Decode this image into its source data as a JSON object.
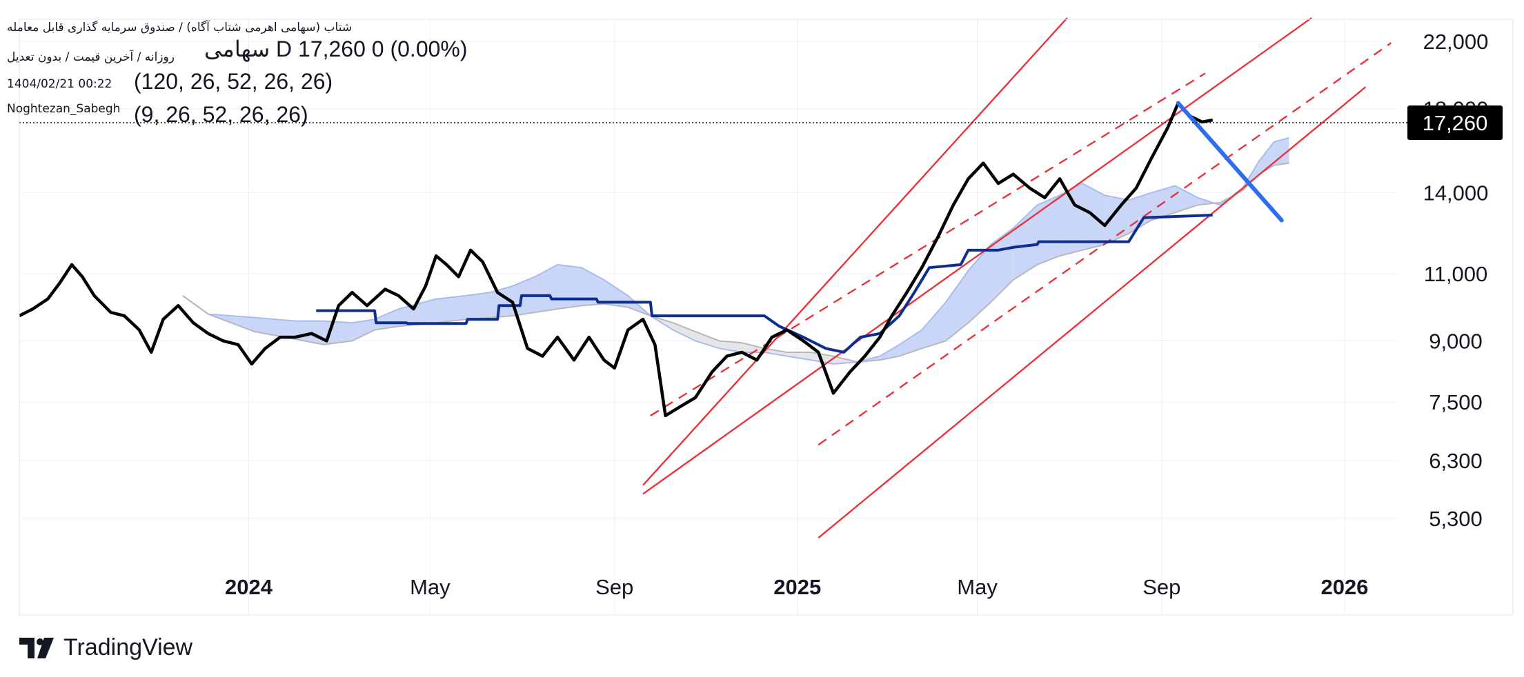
{
  "header": {
    "symbol_full_name": "شتاب (سهامی اهرمی شتاب آگاه) / صندوق سرمایه گذاری قابل معامله",
    "timeframe_note": "روزانه / آخرین قیمت / بدون تعدیل",
    "datetime": "1404/02/21 00:22",
    "author": "Noghtezan_Sabegh",
    "symbol_short": "سهامی",
    "symbol_suffix": "D",
    "price_line": "17,260  0 (0.00%)",
    "indicator1_params": "(120, 26, 52, 26, 26)",
    "indicator2_params": "(9, 26, 52, 26, 26)"
  },
  "branding": {
    "name": "TradingView",
    "logo_icon": "tradingview-logo-icon"
  },
  "colors": {
    "price": "#000000",
    "baseline": "#0d2e8f",
    "cloud_fill": "#c9d6f7",
    "cloud_line": "#a9bcee",
    "cloud_fill_bear": "#e6e6e9",
    "cloud_line_bear": "#b8b8bc",
    "channel": "#e8333c",
    "projection": "#2f6df0",
    "badge_bg": "#000000",
    "grid": "#eef0f3"
  },
  "chart_data": {
    "type": "line",
    "y_scale": "log",
    "ylim": [
      4800,
      23500
    ],
    "xlim": [
      "2023-08-01",
      "2026-02-05"
    ],
    "grid": true,
    "y_ticks": [
      22000,
      18000,
      14000,
      11000,
      9000,
      7500,
      6300,
      5300
    ],
    "y_tick_labels": [
      "22,000",
      "18,000",
      "14,000",
      "11,000",
      "9,000",
      "7,500",
      "6,300",
      "5,300"
    ],
    "x_ticks": [
      {
        "date": "2024-01-01",
        "label": "2024",
        "bold": true
      },
      {
        "date": "2024-05-01",
        "label": "May",
        "bold": false
      },
      {
        "date": "2024-09-01",
        "label": "Sep",
        "bold": false
      },
      {
        "date": "2025-01-01",
        "label": "2025",
        "bold": true
      },
      {
        "date": "2025-05-01",
        "label": "May",
        "bold": false
      },
      {
        "date": "2025-09-01",
        "label": "Sep",
        "bold": false
      },
      {
        "date": "2026-01-01",
        "label": "2026",
        "bold": true
      }
    ],
    "last_price": 17260,
    "last_price_label": "17,260",
    "series": [
      {
        "role": "price",
        "points": [
          [
            "2023-08-01",
            9700
          ],
          [
            "2023-08-10",
            9900
          ],
          [
            "2023-08-20",
            10200
          ],
          [
            "2023-08-28",
            10700
          ],
          [
            "2023-09-05",
            11300
          ],
          [
            "2023-09-12",
            10900
          ],
          [
            "2023-09-20",
            10300
          ],
          [
            "2023-10-01",
            9800
          ],
          [
            "2023-10-10",
            9700
          ],
          [
            "2023-10-20",
            9300
          ],
          [
            "2023-10-28",
            8700
          ],
          [
            "2023-11-05",
            9600
          ],
          [
            "2023-11-15",
            10000
          ],
          [
            "2023-11-25",
            9500
          ],
          [
            "2023-12-05",
            9200
          ],
          [
            "2023-12-15",
            9000
          ],
          [
            "2023-12-25",
            8900
          ],
          [
            "2024-01-03",
            8400
          ],
          [
            "2024-01-12",
            8800
          ],
          [
            "2024-01-22",
            9100
          ],
          [
            "2024-02-01",
            9100
          ],
          [
            "2024-02-12",
            9200
          ],
          [
            "2024-02-22",
            9000
          ],
          [
            "2024-03-01",
            10000
          ],
          [
            "2024-03-10",
            10400
          ],
          [
            "2024-03-20",
            10000
          ],
          [
            "2024-04-01",
            10500
          ],
          [
            "2024-04-10",
            10300
          ],
          [
            "2024-04-20",
            9900
          ],
          [
            "2024-04-28",
            10600
          ],
          [
            "2024-05-05",
            11600
          ],
          [
            "2024-05-12",
            11300
          ],
          [
            "2024-05-20",
            10900
          ],
          [
            "2024-05-28",
            11800
          ],
          [
            "2024-06-05",
            11400
          ],
          [
            "2024-06-15",
            10400
          ],
          [
            "2024-06-25",
            10100
          ],
          [
            "2024-07-05",
            8800
          ],
          [
            "2024-07-15",
            8600
          ],
          [
            "2024-07-25",
            9100
          ],
          [
            "2024-08-05",
            8500
          ],
          [
            "2024-08-15",
            9100
          ],
          [
            "2024-08-25",
            8500
          ],
          [
            "2024-09-01",
            8300
          ],
          [
            "2024-09-10",
            9300
          ],
          [
            "2024-09-20",
            9600
          ],
          [
            "2024-09-28",
            8900
          ],
          [
            "2024-10-05",
            7200
          ],
          [
            "2024-10-15",
            7400
          ],
          [
            "2024-10-25",
            7600
          ],
          [
            "2024-11-05",
            8200
          ],
          [
            "2024-11-15",
            8600
          ],
          [
            "2024-11-25",
            8700
          ],
          [
            "2024-12-05",
            8500
          ],
          [
            "2024-12-15",
            9100
          ],
          [
            "2024-12-25",
            9300
          ],
          [
            "2025-01-05",
            9000
          ],
          [
            "2025-01-15",
            8700
          ],
          [
            "2025-01-25",
            7700
          ],
          [
            "2025-02-05",
            8200
          ],
          [
            "2025-02-15",
            8600
          ],
          [
            "2025-02-25",
            9100
          ],
          [
            "2025-03-05",
            9700
          ],
          [
            "2025-03-15",
            10400
          ],
          [
            "2025-03-25",
            11200
          ],
          [
            "2025-04-05",
            12300
          ],
          [
            "2025-04-15",
            13500
          ],
          [
            "2025-04-25",
            14600
          ],
          [
            "2025-05-05",
            15300
          ],
          [
            "2025-05-15",
            14400
          ],
          [
            "2025-05-25",
            14800
          ],
          [
            "2025-06-05",
            14200
          ],
          [
            "2025-06-15",
            13800
          ],
          [
            "2025-06-25",
            14600
          ],
          [
            "2025-07-05",
            13500
          ],
          [
            "2025-07-15",
            13200
          ],
          [
            "2025-07-25",
            12700
          ],
          [
            "2025-08-05",
            13500
          ],
          [
            "2025-08-15",
            14200
          ],
          [
            "2025-08-25",
            15500
          ],
          [
            "2025-09-05",
            17000
          ],
          [
            "2025-09-12",
            18300
          ],
          [
            "2025-09-20",
            17600
          ],
          [
            "2025-09-28",
            17300
          ],
          [
            "2025-10-05",
            17400
          ]
        ]
      },
      {
        "role": "baseline",
        "points": [
          [
            "2024-02-15",
            9850
          ],
          [
            "2024-03-25",
            9850
          ],
          [
            "2024-03-26",
            9500
          ],
          [
            "2024-04-15",
            9500
          ],
          [
            "2024-04-16",
            9480
          ],
          [
            "2024-05-25",
            9480
          ],
          [
            "2024-05-26",
            9600
          ],
          [
            "2024-06-15",
            9600
          ],
          [
            "2024-06-16",
            10000
          ],
          [
            "2024-06-30",
            10000
          ],
          [
            "2024-07-01",
            10300
          ],
          [
            "2024-07-20",
            10300
          ],
          [
            "2024-07-21",
            10200
          ],
          [
            "2024-08-20",
            10200
          ],
          [
            "2024-08-21",
            10100
          ],
          [
            "2024-09-25",
            10100
          ],
          [
            "2024-09-26",
            9700
          ],
          [
            "2024-12-10",
            9700
          ],
          [
            "2024-12-20",
            9400
          ],
          [
            "2025-01-05",
            9100
          ],
          [
            "2025-01-20",
            8800
          ],
          [
            "2025-02-01",
            8700
          ],
          [
            "2025-02-12",
            9100
          ],
          [
            "2025-02-25",
            9200
          ],
          [
            "2025-03-10",
            9700
          ],
          [
            "2025-03-20",
            10400
          ],
          [
            "2025-03-30",
            11200
          ],
          [
            "2025-04-20",
            11300
          ],
          [
            "2025-04-25",
            11800
          ],
          [
            "2025-05-15",
            11800
          ],
          [
            "2025-05-25",
            11900
          ],
          [
            "2025-06-10",
            12000
          ],
          [
            "2025-06-11",
            12100
          ],
          [
            "2025-08-10",
            12100
          ],
          [
            "2025-08-20",
            13000
          ],
          [
            "2025-10-05",
            13100
          ]
        ]
      }
    ],
    "cloud": [
      [
        "2023-11-18",
        10300,
        10300
      ],
      [
        "2023-12-05",
        9750,
        9750
      ],
      [
        "2024-01-05",
        9650,
        9250
      ],
      [
        "2024-02-01",
        9550,
        9050
      ],
      [
        "2024-02-20",
        9550,
        8900
      ],
      [
        "2024-03-10",
        9500,
        9000
      ],
      [
        "2024-03-25",
        9600,
        9300
      ],
      [
        "2024-04-10",
        9900,
        9400
      ],
      [
        "2024-05-05",
        10200,
        9500
      ],
      [
        "2024-05-25",
        10300,
        9600
      ],
      [
        "2024-06-10",
        10400,
        9650
      ],
      [
        "2024-06-25",
        10600,
        9700
      ],
      [
        "2024-07-10",
        10900,
        9800
      ],
      [
        "2024-07-25",
        11300,
        9900
      ],
      [
        "2024-08-10",
        11200,
        10000
      ],
      [
        "2024-08-25",
        10800,
        10050
      ],
      [
        "2024-09-10",
        10300,
        9950
      ],
      [
        "2024-09-25",
        9700,
        9700
      ],
      [
        "2024-10-10",
        9300,
        9500
      ],
      [
        "2024-10-25",
        9000,
        9250
      ],
      [
        "2024-11-10",
        8800,
        9000
      ],
      [
        "2024-11-25",
        8700,
        8950
      ],
      [
        "2024-12-10",
        8700,
        8800
      ],
      [
        "2024-12-25",
        8600,
        8700
      ],
      [
        "2025-01-10",
        8500,
        8700
      ],
      [
        "2025-01-25",
        8400,
        8600
      ],
      [
        "2025-02-10",
        8450,
        8450
      ],
      [
        "2025-02-25",
        8600,
        8500
      ],
      [
        "2025-03-10",
        8900,
        8600
      ],
      [
        "2025-03-25",
        9300,
        8800
      ],
      [
        "2025-04-10",
        10100,
        9000
      ],
      [
        "2025-04-25",
        11100,
        9500
      ],
      [
        "2025-05-10",
        12000,
        10100
      ],
      [
        "2025-05-25",
        12600,
        10800
      ],
      [
        "2025-06-10",
        13500,
        11300
      ],
      [
        "2025-06-25",
        13900,
        11600
      ],
      [
        "2025-07-10",
        14400,
        11800
      ],
      [
        "2025-07-25",
        13900,
        12000
      ],
      [
        "2025-08-10",
        13700,
        12400
      ],
      [
        "2025-08-25",
        14000,
        12900
      ],
      [
        "2025-09-10",
        14300,
        13200
      ],
      [
        "2025-09-25",
        13800,
        13500
      ],
      [
        "2025-10-10",
        13500,
        13600
      ],
      [
        "2025-10-25",
        14200,
        14100
      ],
      [
        "2025-11-05",
        15400,
        14800
      ],
      [
        "2025-11-15",
        16300,
        15200
      ],
      [
        "2025-11-25",
        16500,
        15300
      ]
    ],
    "channel_lines": [
      {
        "style": "solid",
        "from": [
          "2024-09-20",
          5850
        ],
        "to": [
          "2025-06-30",
          23600
        ]
      },
      {
        "style": "dashed",
        "from": [
          "2024-09-25",
          7200
        ],
        "to": [
          "2025-09-30",
          20000
        ]
      },
      {
        "style": "solid",
        "from": [
          "2024-09-20",
          5700
        ],
        "to": [
          "2025-12-10",
          23600
        ]
      },
      {
        "style": "dashed",
        "from": [
          "2025-01-15",
          6600
        ],
        "to": [
          "2026-02-01",
          21900
        ]
      },
      {
        "style": "solid",
        "from": [
          "2025-01-15",
          5000
        ],
        "to": [
          "2026-01-15",
          19200
        ]
      }
    ],
    "projection_line": {
      "from": [
        "2025-09-12",
        18300
      ],
      "to": [
        "2025-11-20",
        12900
      ]
    }
  }
}
